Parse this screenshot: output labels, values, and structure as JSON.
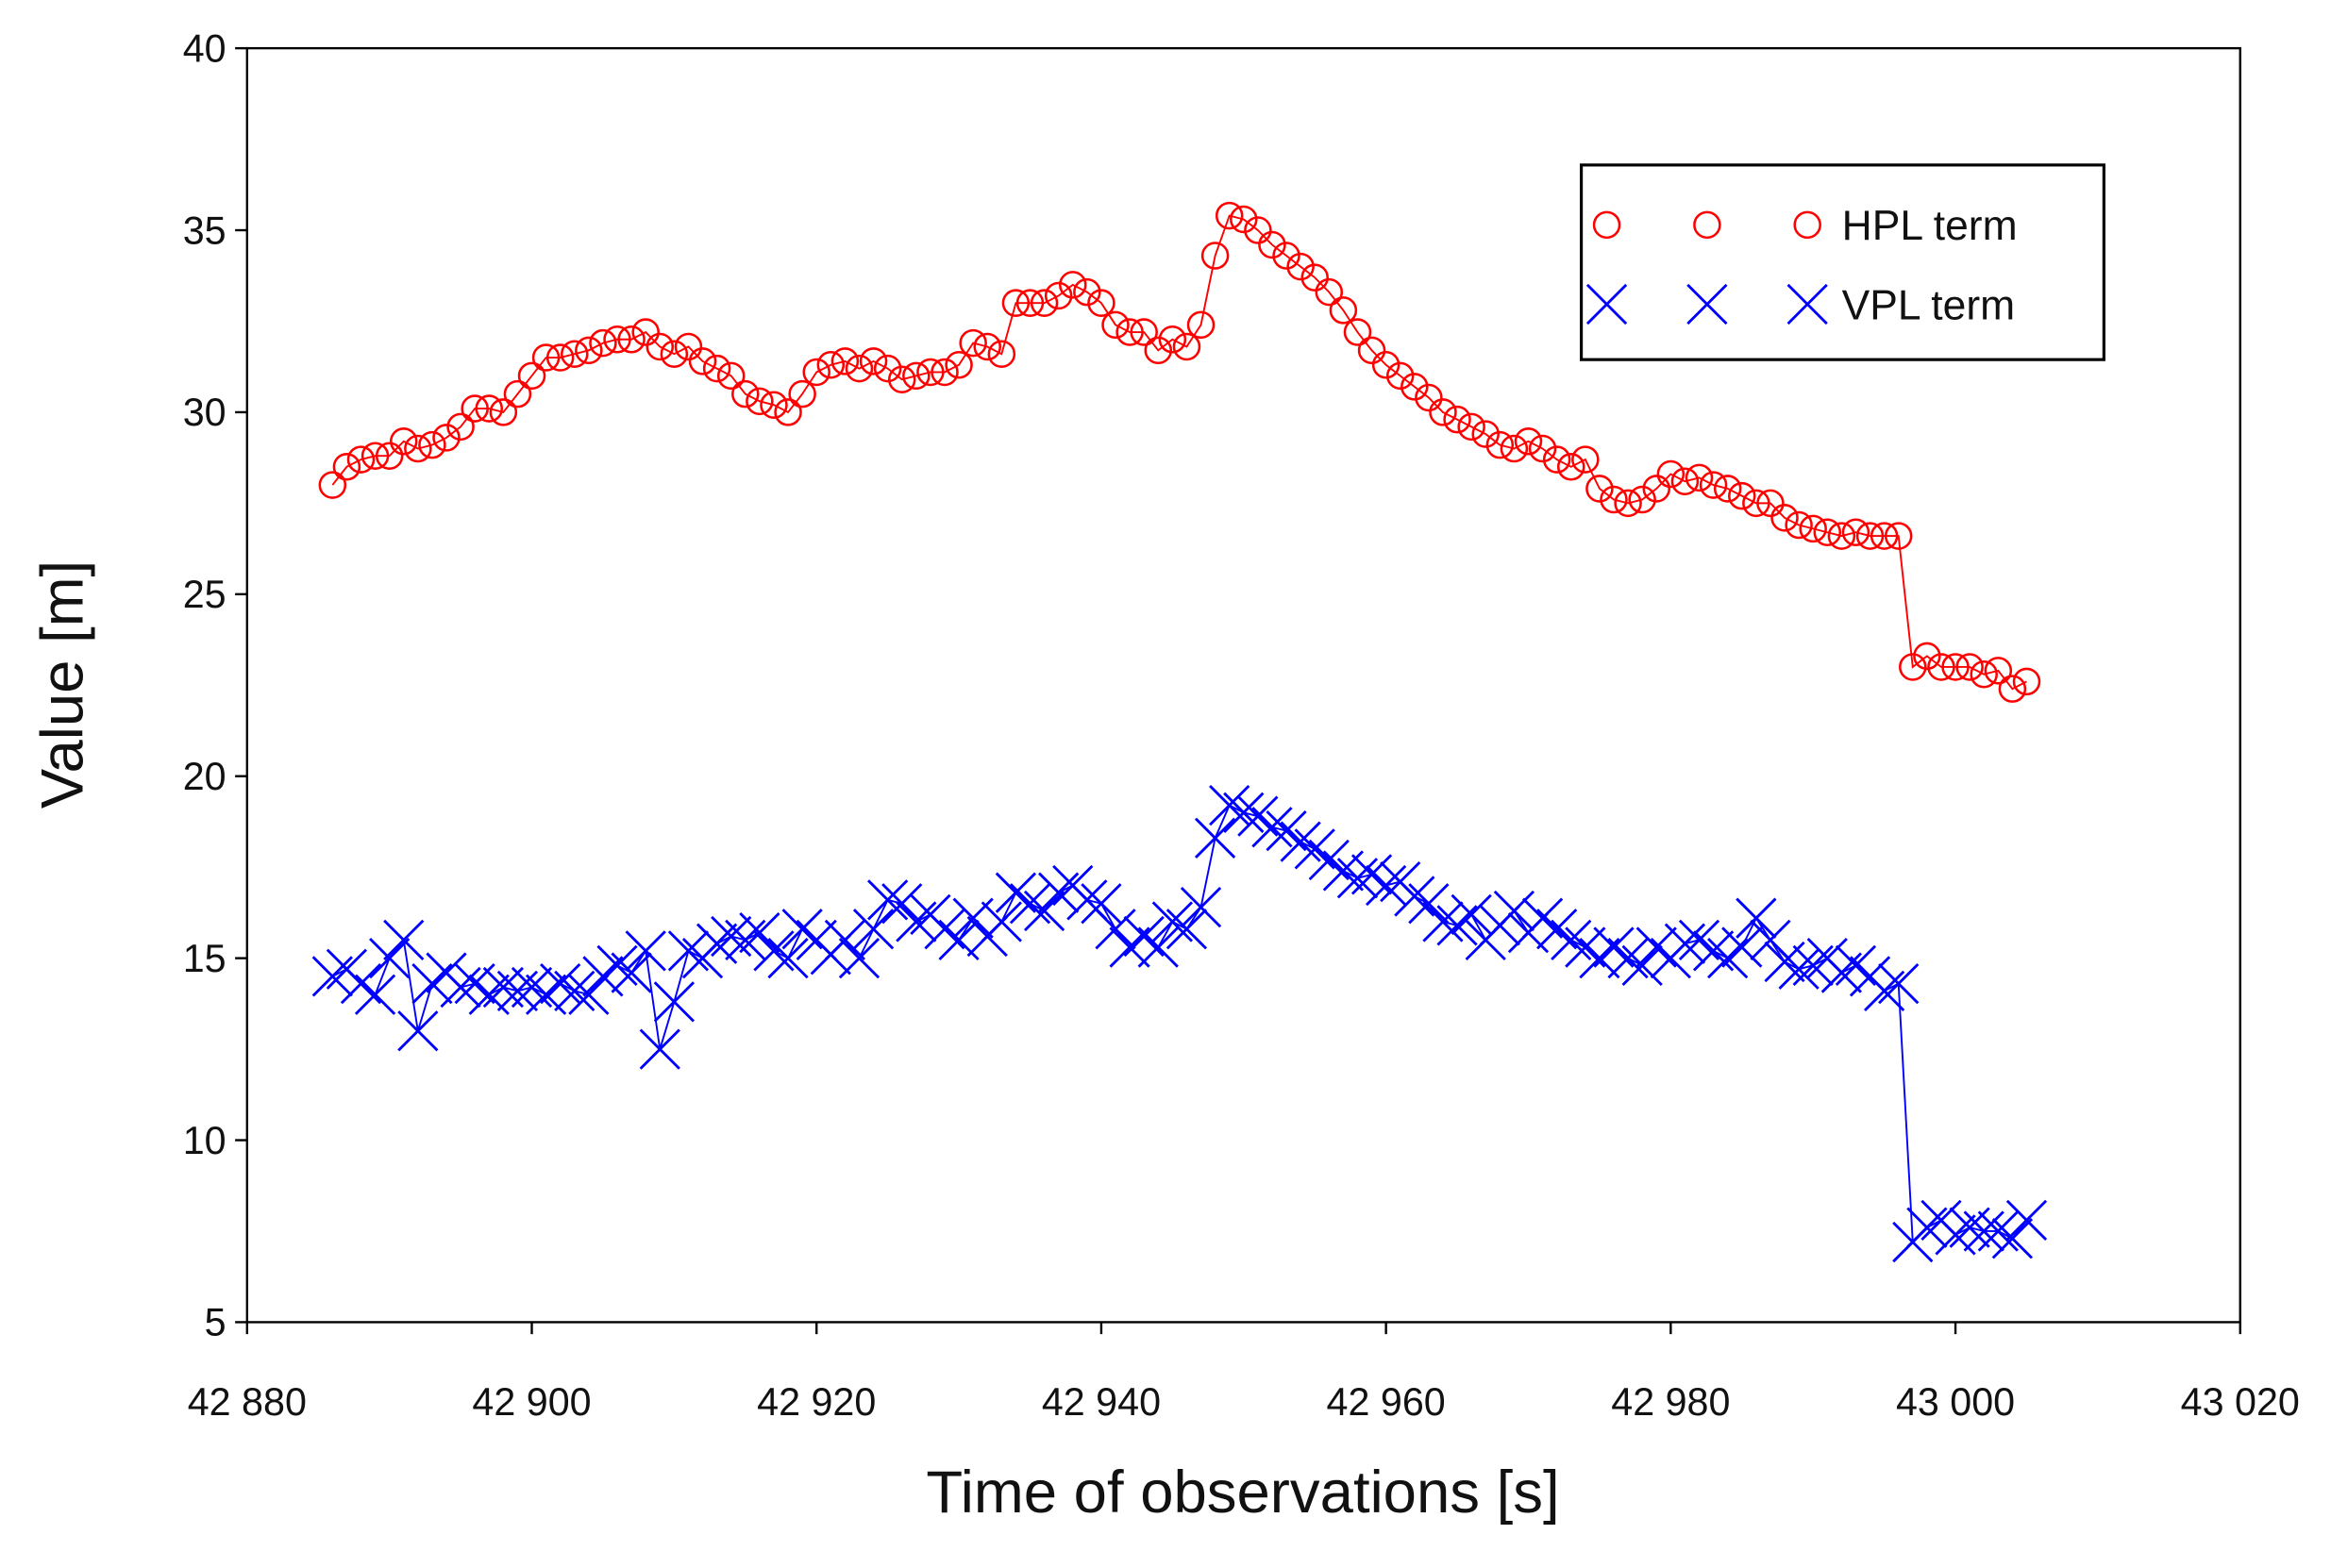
{
  "chart_data": {
    "type": "line",
    "xlabel": "Time of observations [s]",
    "ylabel": "Value [m]",
    "x": [
      42886,
      42887,
      42888,
      42889,
      42890,
      42891,
      42892,
      42893,
      42894,
      42895,
      42896,
      42897,
      42898,
      42899,
      42900,
      42901,
      42902,
      42903,
      42904,
      42905,
      42906,
      42907,
      42908,
      42909,
      42910,
      42911,
      42912,
      42913,
      42914,
      42915,
      42916,
      42917,
      42918,
      42919,
      42920,
      42921,
      42922,
      42923,
      42924,
      42925,
      42926,
      42927,
      42928,
      42929,
      42930,
      42931,
      42932,
      42933,
      42934,
      42935,
      42936,
      42937,
      42938,
      42939,
      42940,
      42941,
      42942,
      42943,
      42944,
      42945,
      42946,
      42947,
      42948,
      42949,
      42950,
      42951,
      42952,
      42953,
      42954,
      42955,
      42956,
      42957,
      42958,
      42959,
      42960,
      42961,
      42962,
      42963,
      42964,
      42965,
      42966,
      42967,
      42968,
      42969,
      42970,
      42971,
      42972,
      42973,
      42974,
      42975,
      42976,
      42977,
      42978,
      42979,
      42980,
      42981,
      42982,
      42983,
      42984,
      42985,
      42986,
      42987,
      42988,
      42989,
      42990,
      42991,
      42992,
      42993,
      42994,
      42995,
      42996,
      42997,
      42998,
      42999,
      43000,
      43001,
      43002,
      43003,
      43004,
      43005
    ],
    "series": [
      {
        "name": "HPL term",
        "color": "#ff0000",
        "marker": "circle",
        "values": [
          28.0,
          28.5,
          28.7,
          28.8,
          28.8,
          29.2,
          29.0,
          29.1,
          29.3,
          29.6,
          30.1,
          30.1,
          30.0,
          30.5,
          31.0,
          31.5,
          31.5,
          31.6,
          31.7,
          31.9,
          32.0,
          32.0,
          32.2,
          31.8,
          31.6,
          31.8,
          31.4,
          31.2,
          31.0,
          30.5,
          30.3,
          30.2,
          30.0,
          30.5,
          31.1,
          31.3,
          31.4,
          31.2,
          31.4,
          31.2,
          30.9,
          31.0,
          31.1,
          31.1,
          31.3,
          31.9,
          31.8,
          31.6,
          33.0,
          33.0,
          33.0,
          33.2,
          33.5,
          33.3,
          33.0,
          32.4,
          32.2,
          32.2,
          31.7,
          32.0,
          31.8,
          32.4,
          34.3,
          35.4,
          35.3,
          35.0,
          34.6,
          34.3,
          34.0,
          33.7,
          33.3,
          32.8,
          32.2,
          31.7,
          31.3,
          31.0,
          30.7,
          30.4,
          30.0,
          29.8,
          29.6,
          29.4,
          29.1,
          29.0,
          29.2,
          29.0,
          28.7,
          28.5,
          28.7,
          27.9,
          27.6,
          27.5,
          27.6,
          27.9,
          28.3,
          28.1,
          28.2,
          28.0,
          27.9,
          27.7,
          27.5,
          27.5,
          27.1,
          26.9,
          26.8,
          26.7,
          26.6,
          26.7,
          26.6,
          26.6,
          26.6,
          23.0,
          23.3,
          23.0,
          23.0,
          23.0,
          22.8,
          22.9,
          22.4,
          22.6
        ]
      },
      {
        "name": "VPL term",
        "color": "#0000ff",
        "marker": "x",
        "values": [
          14.5,
          14.7,
          14.3,
          14.0,
          15.0,
          15.5,
          13.0,
          14.3,
          14.6,
          14.2,
          14.3,
          14.0,
          14.2,
          14.1,
          14.2,
          14.0,
          14.3,
          14.1,
          14.0,
          14.5,
          14.8,
          14.6,
          15.2,
          12.5,
          13.8,
          15.2,
          15.0,
          15.4,
          15.6,
          15.5,
          15.7,
          15.2,
          15.0,
          15.8,
          15.5,
          15.1,
          15.5,
          15.0,
          15.8,
          16.6,
          16.5,
          16.0,
          16.2,
          15.8,
          15.5,
          16.1,
          15.6,
          16.0,
          16.8,
          16.5,
          16.3,
          16.8,
          17.0,
          16.6,
          16.5,
          15.8,
          15.3,
          15.6,
          15.3,
          16.0,
          15.8,
          16.4,
          18.3,
          19.2,
          19.0,
          18.9,
          18.6,
          18.5,
          18.2,
          18.0,
          17.7,
          17.4,
          17.2,
          17.3,
          17.0,
          17.1,
          16.7,
          16.5,
          16.0,
          15.9,
          16.2,
          15.5,
          15.9,
          16.3,
          15.7,
          16.1,
          15.8,
          15.5,
          15.3,
          15.0,
          15.3,
          15.0,
          14.8,
          15.3,
          15.0,
          15.4,
          15.5,
          15.2,
          15.0,
          15.3,
          16.1,
          15.5,
          14.9,
          14.7,
          14.8,
          15.0,
          14.6,
          14.8,
          14.5,
          14.1,
          14.3,
          7.2,
          7.6,
          7.8,
          7.4,
          7.6,
          7.5,
          7.5,
          7.3,
          7.8
        ]
      }
    ],
    "xlim": [
      42880,
      43020
    ],
    "xticks": [
      {
        "value": 42880,
        "label": "42 880"
      },
      {
        "value": 42900,
        "label": "42 900"
      },
      {
        "value": 42920,
        "label": "42 920"
      },
      {
        "value": 42940,
        "label": "42 940"
      },
      {
        "value": 42960,
        "label": "42 960"
      },
      {
        "value": 42980,
        "label": "42 980"
      },
      {
        "value": 43000,
        "label": "43 000"
      },
      {
        "value": 43020,
        "label": "43 020"
      }
    ],
    "ylim": [
      5,
      40
    ],
    "yticks": [
      5,
      10,
      15,
      20,
      25,
      30,
      35,
      40
    ],
    "legend": "upper right",
    "grid": false
  }
}
